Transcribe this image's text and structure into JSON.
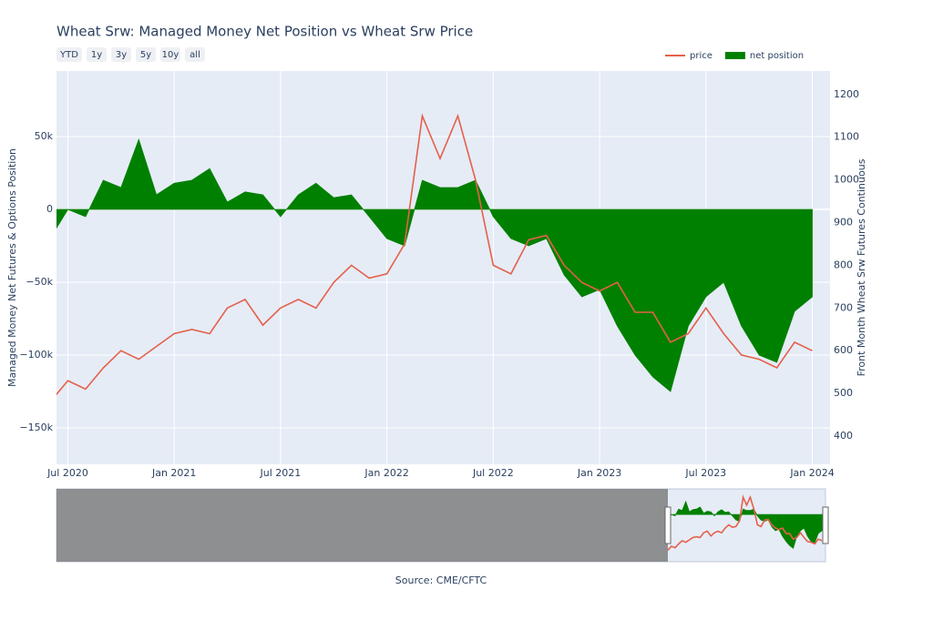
{
  "chart_data": {
    "type": "line",
    "title": "Wheat Srw: Managed Money Net Position vs Wheat Srw Price",
    "buttons": [
      "YTD",
      "1y",
      "3y",
      "5y",
      "10y",
      "all"
    ],
    "ylabel": "Managed Money Net Futures & Options Position",
    "y2label": "Front Month Wheat Srw Futures Continuous",
    "source": "Source: CME/CFTC",
    "legend": "top-right",
    "grid": true,
    "x": [
      "2020-06",
      "2020-07",
      "2020-08",
      "2020-09",
      "2020-10",
      "2020-11",
      "2020-12",
      "2021-01",
      "2021-02",
      "2021-03",
      "2021-04",
      "2021-05",
      "2021-06",
      "2021-07",
      "2021-08",
      "2021-09",
      "2021-10",
      "2021-11",
      "2021-12",
      "2022-01",
      "2022-02",
      "2022-03",
      "2022-04",
      "2022-05",
      "2022-06",
      "2022-07",
      "2022-08",
      "2022-09",
      "2022-10",
      "2022-11",
      "2022-12",
      "2023-01",
      "2023-02",
      "2023-03",
      "2023-04",
      "2023-05",
      "2023-06",
      "2023-07",
      "2023-08",
      "2023-09",
      "2023-10",
      "2023-11",
      "2023-12",
      "2024-01"
    ],
    "xlim": [
      "2020-06",
      "2024-02"
    ],
    "xticks": [
      {
        "value": "2020-07",
        "label": "Jul 2020"
      },
      {
        "value": "2021-01",
        "label": "Jan 2021"
      },
      {
        "value": "2021-07",
        "label": "Jul 2021"
      },
      {
        "value": "2022-01",
        "label": "Jan 2022"
      },
      {
        "value": "2022-07",
        "label": "Jul 2022"
      },
      {
        "value": "2023-01",
        "label": "Jan 2023"
      },
      {
        "value": "2023-07",
        "label": "Jul 2023"
      },
      {
        "value": "2024-01",
        "label": "Jan 2024"
      }
    ],
    "ylim": [
      -175000,
      95000
    ],
    "yticks": [
      {
        "value": -150000,
        "label": "−150k"
      },
      {
        "value": -100000,
        "label": "−100k"
      },
      {
        "value": -50000,
        "label": "−50k"
      },
      0,
      {
        "value": 50000,
        "label": "50k"
      }
    ],
    "y2lim": [
      334,
      1255
    ],
    "y2ticks": [
      400,
      500,
      600,
      700,
      800,
      900,
      1000,
      1100,
      1200
    ],
    "series": [
      {
        "name": "price",
        "color": "#e5604a",
        "axis": "y2",
        "values": [
          480,
          530,
          510,
          560,
          600,
          580,
          610,
          640,
          650,
          640,
          700,
          720,
          660,
          700,
          720,
          700,
          760,
          800,
          770,
          780,
          850,
          1150,
          1050,
          1150,
          1000,
          800,
          780,
          860,
          870,
          800,
          760,
          740,
          760,
          690,
          690,
          620,
          640,
          700,
          640,
          590,
          580,
          560,
          620,
          600
        ]
      },
      {
        "name": "net position",
        "color": "#008000",
        "values": [
          -20000,
          0,
          -5000,
          20000,
          15000,
          48000,
          10000,
          18000,
          20000,
          28000,
          5000,
          12000,
          10000,
          -5000,
          10000,
          18000,
          8000,
          10000,
          -5000,
          -20000,
          -25000,
          20000,
          15000,
          15000,
          20000,
          -5000,
          -20000,
          -25000,
          -20000,
          -45000,
          -60000,
          -55000,
          -80000,
          -100000,
          -115000,
          -125000,
          -80000,
          -60000,
          -50000,
          -80000,
          -100000,
          -105000,
          -70000,
          -60000
        ]
      }
    ]
  }
}
